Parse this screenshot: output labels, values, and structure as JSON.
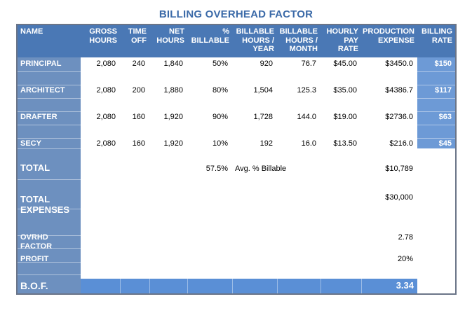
{
  "title": "BILLING OVERHEAD FACTOR",
  "colors": {
    "title": "#3b6aa8",
    "header_bg": "#4a78b5",
    "name_col_bg": "#6d90bf",
    "bof_row_bg": "#5a8fd6",
    "rate_bg": "#6d9ad6",
    "frame": "#6b7588"
  },
  "headers": {
    "name": "NAME",
    "gross_hours": [
      "GROSS",
      "HOURS"
    ],
    "time_off": [
      "TIME",
      "OFF"
    ],
    "net_hours": [
      "NET",
      "HOURS"
    ],
    "pct_billable": [
      "%",
      "BILLABLE"
    ],
    "billable_hours_year": [
      "BILLABLE",
      "HOURS /",
      "YEAR"
    ],
    "billable_hours_month": [
      "BILLABLE",
      "HOURS /",
      "MONTH"
    ],
    "hourly_pay_rate": [
      "HOURLY",
      "PAY",
      "RATE"
    ],
    "production_expense": [
      "PRODUCTION",
      "EXPENSE"
    ],
    "billing_rate": [
      "BILLING",
      "RATE"
    ]
  },
  "rows": [
    {
      "name": "PRINCIPAL",
      "gross": "2,080",
      "off": "240",
      "net": "1,840",
      "pct": "50%",
      "byear": "920",
      "bmonth": "76.7",
      "pay": "$45.00",
      "expense": "$3450.0",
      "rate": "$150"
    },
    {
      "name": "ARCHITECT",
      "gross": "2,080",
      "off": "200",
      "net": "1,880",
      "pct": "80%",
      "byear": "1,504",
      "bmonth": "125.3",
      "pay": "$35.00",
      "expense": "$4386.7",
      "rate": "$117"
    },
    {
      "name": "DRAFTER",
      "gross": "2,080",
      "off": "160",
      "net": "1,920",
      "pct": "90%",
      "byear": "1,728",
      "bmonth": "144.0",
      "pay": "$19.00",
      "expense": "$2736.0",
      "rate": "$63"
    },
    {
      "name": "SECY",
      "gross": "2,080",
      "off": "160",
      "net": "1,920",
      "pct": "10%",
      "byear": "192",
      "bmonth": "16.0",
      "pay": "$13.50",
      "expense": "$216.0",
      "rate": "$45"
    }
  ],
  "total": {
    "label": "TOTAL",
    "avg_pct": "57.5%",
    "avg_label": "Avg. % Billable",
    "expense": "$10,789"
  },
  "total_expenses": {
    "label": [
      "TOTAL",
      "EXPENSES"
    ],
    "value": "$30,000"
  },
  "ovrhd": {
    "label": [
      "OVRHD",
      "FACTOR"
    ],
    "value": "2.78"
  },
  "profit": {
    "label": "PROFIT",
    "value": "20%"
  },
  "bof": {
    "label": "B.O.F.",
    "value": "3.34"
  }
}
